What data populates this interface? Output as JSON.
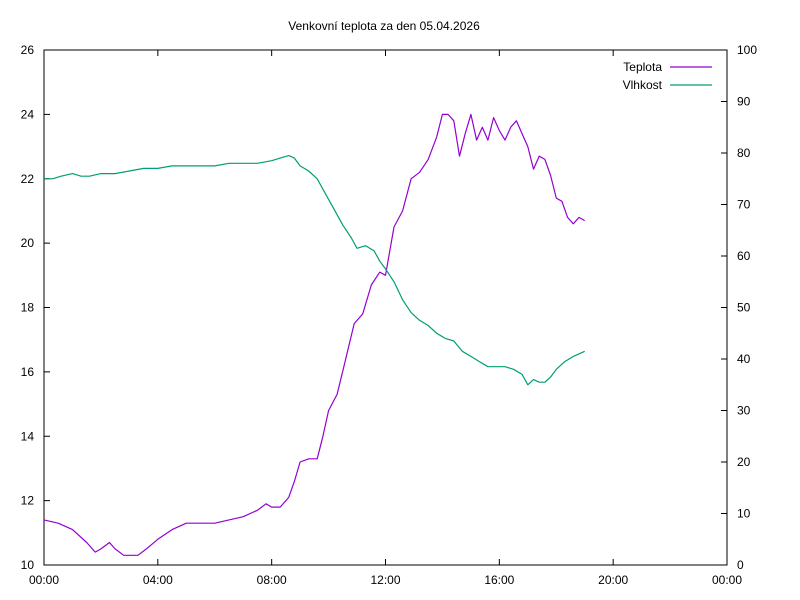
{
  "chart_data": {
    "type": "line",
    "title": "Venkovní teplota za den 05.04.2026",
    "xlabel": "",
    "ylabel": "",
    "y2label": "",
    "x_ticks": [
      "00:00",
      "04:00",
      "08:00",
      "12:00",
      "16:00",
      "20:00",
      "00:00"
    ],
    "xlim_hours": [
      0,
      24
    ],
    "ylim": [
      10,
      26
    ],
    "y_ticks": [
      "10",
      "12",
      "14",
      "16",
      "18",
      "20",
      "22",
      "24",
      "26"
    ],
    "y2lim": [
      0,
      100
    ],
    "y2_ticks": [
      "0",
      "10",
      "20",
      "30",
      "40",
      "50",
      "60",
      "70",
      "80",
      "90",
      "100"
    ],
    "grid": false,
    "legend_position": "top-right",
    "series": [
      {
        "name": "Teplota",
        "axis": "left",
        "color": "#9400d3",
        "x_hours": [
          0.0,
          0.5,
          1.0,
          1.5,
          1.8,
          2.0,
          2.3,
          2.5,
          2.8,
          3.0,
          3.3,
          3.6,
          4.0,
          4.5,
          5.0,
          5.5,
          6.0,
          6.5,
          7.0,
          7.5,
          7.8,
          8.0,
          8.3,
          8.6,
          8.8,
          9.0,
          9.3,
          9.6,
          9.8,
          10.0,
          10.3,
          10.6,
          10.9,
          11.2,
          11.5,
          11.8,
          12.0,
          12.3,
          12.6,
          12.9,
          13.2,
          13.5,
          13.8,
          14.0,
          14.2,
          14.4,
          14.6,
          14.8,
          15.0,
          15.2,
          15.4,
          15.6,
          15.8,
          16.0,
          16.2,
          16.4,
          16.6,
          16.8,
          17.0,
          17.2,
          17.4,
          17.6,
          17.8,
          18.0,
          18.2,
          18.4,
          18.6,
          18.8,
          19.0
        ],
        "values": [
          11.4,
          11.3,
          11.1,
          10.7,
          10.4,
          10.5,
          10.7,
          10.5,
          10.3,
          10.3,
          10.3,
          10.5,
          10.8,
          11.1,
          11.3,
          11.3,
          11.3,
          11.4,
          11.5,
          11.7,
          11.9,
          11.8,
          11.8,
          12.1,
          12.6,
          13.2,
          13.3,
          13.3,
          14.0,
          14.8,
          15.3,
          16.4,
          17.5,
          17.8,
          18.7,
          19.1,
          19.0,
          20.5,
          21.0,
          22.0,
          22.2,
          22.6,
          23.3,
          24.0,
          24.0,
          23.8,
          22.7,
          23.4,
          24.0,
          23.2,
          23.6,
          23.2,
          23.9,
          23.5,
          23.2,
          23.6,
          23.8,
          23.4,
          23.0,
          22.3,
          22.7,
          22.6,
          22.1,
          21.4,
          21.3,
          20.8,
          20.6,
          20.8,
          20.7
        ]
      },
      {
        "name": "Vlhkost",
        "axis": "right",
        "color": "#009e73",
        "x_hours": [
          0.0,
          0.3,
          0.6,
          1.0,
          1.3,
          1.6,
          2.0,
          2.5,
          3.0,
          3.5,
          4.0,
          4.5,
          5.0,
          5.5,
          6.0,
          6.5,
          7.0,
          7.5,
          8.0,
          8.3,
          8.6,
          8.8,
          9.0,
          9.3,
          9.6,
          9.9,
          10.2,
          10.5,
          10.8,
          11.0,
          11.3,
          11.6,
          11.8,
          12.0,
          12.3,
          12.6,
          12.9,
          13.2,
          13.5,
          13.8,
          14.1,
          14.4,
          14.7,
          15.0,
          15.3,
          15.6,
          15.9,
          16.2,
          16.5,
          16.8,
          17.0,
          17.2,
          17.4,
          17.6,
          17.8,
          18.0,
          18.3,
          18.6,
          19.0
        ],
        "values": [
          75.0,
          75.0,
          75.5,
          76.0,
          75.5,
          75.5,
          76.0,
          76.0,
          76.5,
          77.0,
          77.0,
          77.5,
          77.5,
          77.5,
          77.5,
          78.0,
          78.0,
          78.0,
          78.5,
          79.0,
          79.5,
          79.0,
          77.5,
          76.5,
          75.0,
          72.0,
          69.0,
          66.0,
          63.5,
          61.5,
          62.0,
          61.0,
          59.0,
          57.5,
          55.0,
          51.5,
          49.0,
          47.5,
          46.5,
          45.0,
          44.0,
          43.5,
          41.5,
          40.5,
          39.5,
          38.5,
          38.5,
          38.5,
          38.0,
          37.0,
          35.0,
          36.0,
          35.5,
          35.5,
          36.5,
          38.0,
          39.5,
          40.5,
          41.5
        ]
      }
    ]
  }
}
